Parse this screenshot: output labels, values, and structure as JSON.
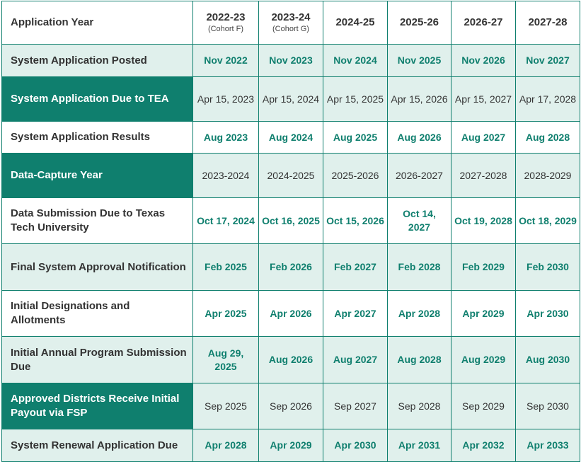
{
  "header": {
    "label": "Application Year",
    "columns": [
      {
        "year": "2022-23",
        "sub": "(Cohort F)"
      },
      {
        "year": "2023-24",
        "sub": "(Cohort G)"
      },
      {
        "year": "2024-25",
        "sub": ""
      },
      {
        "year": "2025-26",
        "sub": ""
      },
      {
        "year": "2026-27",
        "sub": ""
      },
      {
        "year": "2027-28",
        "sub": ""
      }
    ]
  },
  "rows": [
    {
      "label": "System Application Posted",
      "style": "light",
      "height": 46,
      "values": [
        "Nov 2022",
        "Nov 2023",
        "Nov 2024",
        "Nov 2025",
        "Nov 2026",
        "Nov 2027"
      ]
    },
    {
      "label": "System Application Due to TEA",
      "style": "dark",
      "height": 63,
      "values": [
        "Apr 15, 2023",
        "Apr 15, 2024",
        "Apr 15, 2025",
        "Apr 15, 2026",
        "Apr 15, 2027",
        "Apr 17, 2028"
      ]
    },
    {
      "label": "System Application Results",
      "style": "white",
      "height": 45,
      "values": [
        "Aug 2023",
        "Aug 2024",
        "Aug 2025",
        "Aug 2026",
        "Aug 2027",
        "Aug 2028"
      ]
    },
    {
      "label": "Data-Capture Year",
      "style": "dark",
      "height": 63,
      "values": [
        "2023-2024",
        "2024-2025",
        "2025-2026",
        "2026-2027",
        "2027-2028",
        "2028-2029"
      ]
    },
    {
      "label": "Data Submission Due to Texas Tech University",
      "style": "white",
      "height": 65,
      "values": [
        "Oct 17, 2024",
        "Oct 16, 2025",
        "Oct 15, 2026",
        "Oct 14, 2027",
        "Oct 19, 2028",
        "Oct 18, 2029"
      ]
    },
    {
      "label": "Final System Approval Notification",
      "style": "light",
      "height": 66,
      "values": [
        "Feb 2025",
        "Feb 2026",
        "Feb 2027",
        "Feb 2028",
        "Feb 2029",
        "Feb 2030"
      ]
    },
    {
      "label": "Initial Designations and Allotments",
      "style": "white",
      "height": 65,
      "values": [
        "Apr 2025",
        "Apr 2026",
        "Apr 2027",
        "Apr 2028",
        "Apr 2029",
        "Apr 2030"
      ]
    },
    {
      "label": "Initial Annual Program Submission Due",
      "style": "light",
      "height": 66,
      "values": [
        "Aug 29, 2025",
        "Aug 2026",
        "Aug 2027",
        "Aug 2028",
        "Aug 2029",
        "Aug 2030"
      ]
    },
    {
      "label": "Approved Districts Receive Initial Payout via FSP",
      "style": "dark",
      "height": 65,
      "values": [
        "Sep 2025",
        "Sep 2026",
        "Sep 2027",
        "Sep 2028",
        "Sep 2029",
        "Sep 2030"
      ]
    },
    {
      "label": "System Renewal Application Due",
      "style": "light",
      "height": 46,
      "values": [
        "Apr 2028",
        "Apr 2029",
        "Apr 2030",
        "Apr 2031",
        "Apr 2032",
        "Apr 2033"
      ]
    }
  ],
  "colors": {
    "accent": "#0f7f6e",
    "light_fill": "#e0f0ec",
    "text": "#333333"
  }
}
